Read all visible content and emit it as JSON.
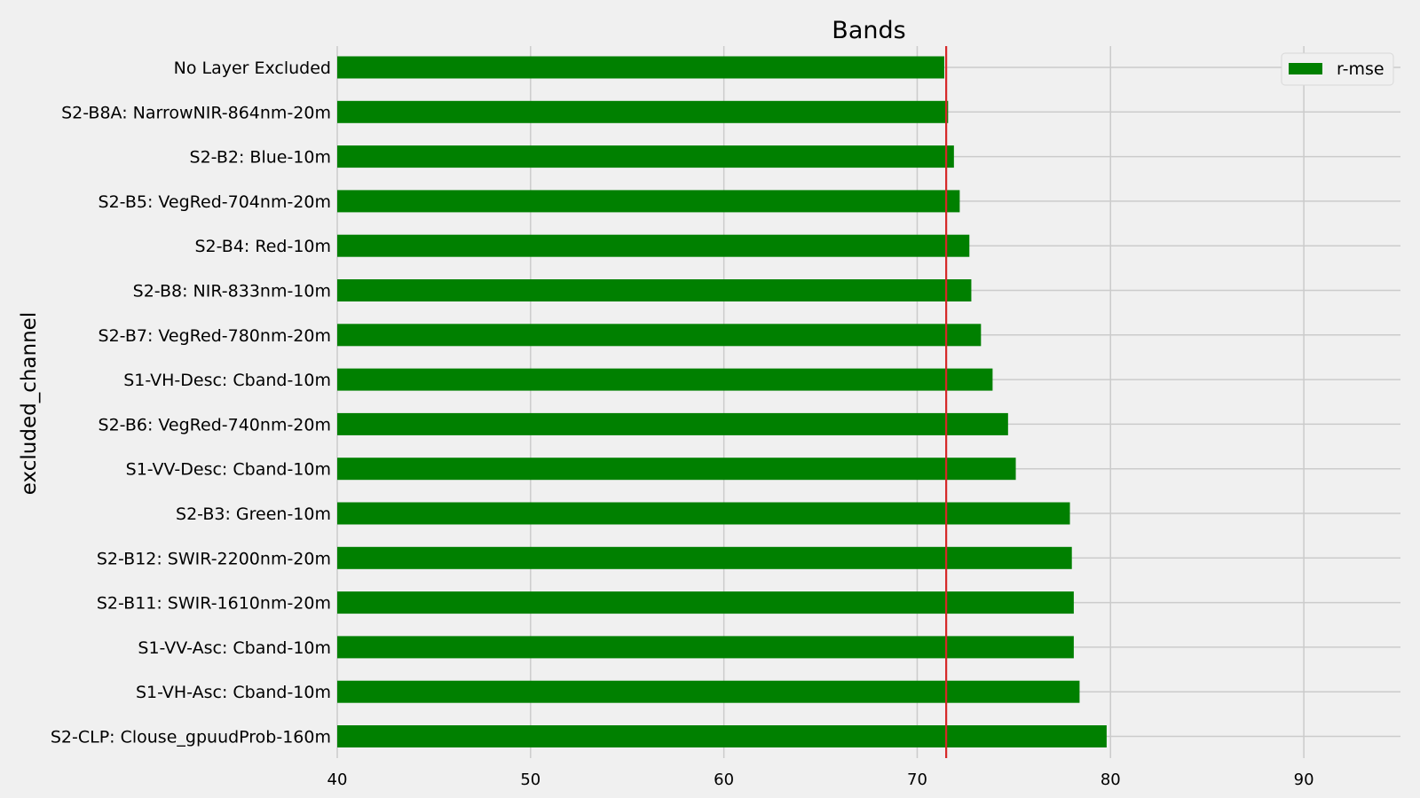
{
  "chart_data": {
    "type": "bar",
    "orientation": "horizontal",
    "title": "Bands",
    "xlabel": "",
    "ylabel": "excluded_channel",
    "xlim": [
      40,
      95
    ],
    "xticks": [
      40,
      50,
      60,
      70,
      80,
      90
    ],
    "grid": true,
    "legend_position": "top-right",
    "categories": [
      "No Layer Excluded",
      "S2-B8A: NarrowNIR-864nm-20m",
      "S2-B2: Blue-10m",
      "S2-B5: VegRed-704nm-20m",
      "S2-B4: Red-10m",
      "S2-B8: NIR-833nm-10m",
      "S2-B7: VegRed-780nm-20m",
      "S1-VH-Desc: Cband-10m",
      "S2-B6: VegRed-740nm-20m",
      "S1-VV-Desc: Cband-10m",
      "S2-B3: Green-10m",
      "S2-B12: SWIR-2200nm-20m",
      "S2-B11: SWIR-1610nm-20m",
      "S1-VV-Asc: Cband-10m",
      "S1-VH-Asc: Cband-10m",
      "S2-CLP: Clouse_gpuudProb-160m"
    ],
    "series": [
      {
        "name": "r-mse",
        "color": "#008000",
        "values": [
          71.4,
          71.6,
          71.9,
          72.2,
          72.7,
          72.8,
          73.3,
          73.9,
          74.7,
          75.1,
          77.9,
          78.0,
          78.1,
          78.1,
          78.4,
          79.8
        ]
      }
    ],
    "reference_line": {
      "x": 71.5,
      "color": "#d62728"
    }
  }
}
